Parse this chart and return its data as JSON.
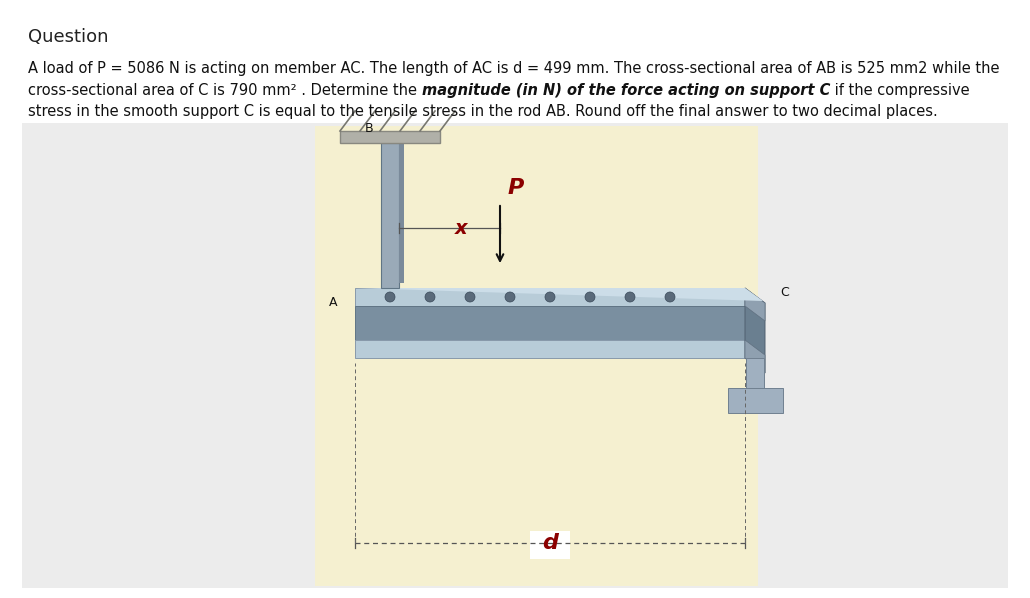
{
  "title": "Question",
  "title_fontsize": 13,
  "body_text_line1": "A load of P = 5086 N is acting on member AC. The length of AC is d = 499 mm. The cross-sectional area of AB is 525 mm2 while the",
  "body_text_line2_normal1": "cross-sectional area of C is 790 mm² . Determine the ",
  "body_text_line2_bold": "magnitude (in N) of the force acting on support C",
  "body_text_line2_normal2": " if the compressive",
  "body_text_line3": "stress in the smooth support C is equal to the tensile stress in the rod AB. Round off the final answer to two decimal places.",
  "text_fontsize": 10.5,
  "bg_color": "#ffffff",
  "outer_box_color": "#e8e8e8",
  "image_bg_color": "#f5f0d0",
  "label_color": "#000000",
  "label_red_color": "#8b0000",
  "beam_top_color": "#b8ccd8",
  "beam_web_color": "#7a8fa0",
  "beam_bot_color": "#b8ccd8",
  "rod_color": "#9aaab8",
  "support_plate_color": "#c0c0b0",
  "support_base_color": "#a0b0c0",
  "ceiling_color": "#b0b0a8"
}
